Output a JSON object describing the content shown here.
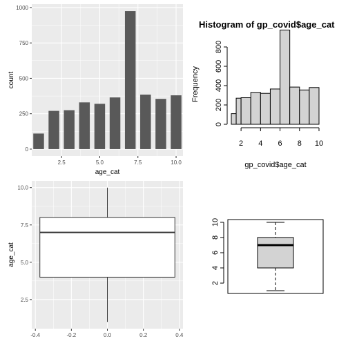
{
  "chart_data": [
    {
      "type": "bar",
      "subtype": "ggplot-bar",
      "x": [
        1,
        2,
        3,
        4,
        5,
        6,
        7,
        8,
        9,
        10
      ],
      "values": [
        110,
        270,
        275,
        330,
        320,
        365,
        975,
        385,
        355,
        380
      ],
      "xlabel": "age_cat",
      "ylabel": "count",
      "xlim": [
        0.55,
        10.45
      ],
      "ylim": [
        -49,
        1024
      ],
      "xticks": [
        2.5,
        5.0,
        7.5,
        10.0
      ],
      "xtick_labels": [
        "2.5",
        "5.0",
        "7.5",
        "10.0"
      ],
      "yticks": [
        0,
        250,
        500,
        750,
        1000
      ],
      "ytick_labels": [
        "0",
        "250",
        "500",
        "750",
        "1000"
      ],
      "bar_color": "#595959",
      "background": "#ebebeb",
      "grid": true
    },
    {
      "type": "bar",
      "subtype": "histogram",
      "title": "Histogram of gp_covid$age_cat",
      "xlabel": "gp_covid$age_cat",
      "ylabel": "Frequency",
      "bins": [
        [
          1,
          1.5
        ],
        [
          1.5,
          2
        ],
        [
          2,
          3
        ],
        [
          3,
          4
        ],
        [
          4,
          5
        ],
        [
          5,
          6
        ],
        [
          6,
          7
        ],
        [
          7,
          8
        ],
        [
          8,
          9
        ],
        [
          9,
          10
        ]
      ],
      "values": [
        110,
        270,
        275,
        330,
        320,
        365,
        975,
        385,
        355,
        380
      ],
      "xlim": [
        1,
        10
      ],
      "ylim": [
        0,
        1000
      ],
      "xticks": [
        2,
        4,
        6,
        8,
        10
      ],
      "xtick_labels": [
        "2",
        "4",
        "6",
        "8",
        "10"
      ],
      "yticks": [
        0,
        200,
        400,
        600,
        800
      ],
      "ytick_labels": [
        "0",
        "200",
        "400",
        "600",
        "800"
      ],
      "bar_color": "#d3d3d3",
      "grid": false
    },
    {
      "type": "box",
      "subtype": "ggplot-boxplot",
      "xlabel": "",
      "ylabel": "age_cat",
      "xlim": [
        -0.42,
        0.42
      ],
      "ylim": [
        0.55,
        10.45
      ],
      "box": {
        "xmin": -0.375,
        "xmax": 0.375,
        "lower_whisker": 1,
        "q1": 4,
        "median": 7,
        "q3": 8,
        "upper_whisker": 10
      },
      "xticks": [
        -0.4,
        -0.2,
        0.0,
        0.2,
        0.4
      ],
      "xtick_labels": [
        "-0.4",
        "-0.2",
        "0.0",
        "0.2",
        "0.4"
      ],
      "yticks": [
        2.5,
        5.0,
        7.5,
        10.0
      ],
      "ytick_labels": [
        "2.5",
        "5.0",
        "7.5",
        "10.0"
      ],
      "background": "#ebebeb",
      "grid": true
    },
    {
      "type": "box",
      "subtype": "base-boxplot",
      "ylim": [
        0.64,
        10.36
      ],
      "box": {
        "lower_whisker": 1,
        "q1": 4,
        "median": 7,
        "q3": 8,
        "upper_whisker": 10
      },
      "yticks": [
        2,
        4,
        6,
        8,
        10
      ],
      "ytick_labels": [
        "2",
        "4",
        "6",
        "8",
        "10"
      ],
      "box_color": "#d3d3d3",
      "grid": false
    }
  ]
}
